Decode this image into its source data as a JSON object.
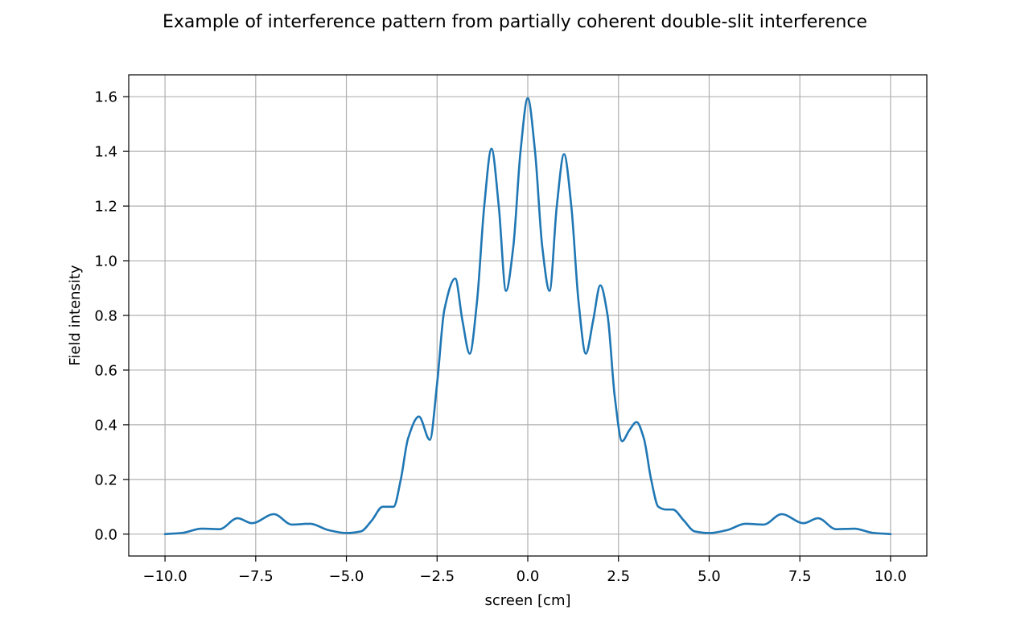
{
  "chart_data": {
    "type": "line",
    "title": "Example of interference pattern from partially coherent double-slit interference",
    "xlabel": "screen [cm]",
    "ylabel": "Field intensity",
    "xlim": [
      -11.0,
      11.0
    ],
    "ylim": [
      -0.08,
      1.68
    ],
    "grid": true,
    "xticks": [
      -10.0,
      -7.5,
      -5.0,
      -2.5,
      0.0,
      2.5,
      5.0,
      7.5,
      10.0
    ],
    "xtick_labels": [
      "−10.0",
      "−7.5",
      "−5.0",
      "−2.5",
      "0.0",
      "2.5",
      "5.0",
      "7.5",
      "10.0"
    ],
    "yticks": [
      0.0,
      0.2,
      0.4,
      0.6,
      0.8,
      1.0,
      1.2,
      1.4,
      1.6
    ],
    "ytick_labels": [
      "0.0",
      "0.2",
      "0.4",
      "0.6",
      "0.8",
      "1.0",
      "1.2",
      "1.4",
      "1.6"
    ],
    "series": [
      {
        "color": "#1f77b4",
        "x": [
          -10.0,
          -9.5,
          -9.0,
          -8.5,
          -8.0,
          -7.6,
          -7.0,
          -6.5,
          -6.0,
          -5.5,
          -5.0,
          -4.6,
          -4.3,
          -4.0,
          -3.7,
          -3.5,
          -3.3,
          -3.0,
          -2.7,
          -2.5,
          -2.3,
          -2.0,
          -1.8,
          -1.6,
          -1.4,
          -1.2,
          -1.0,
          -0.8,
          -0.6,
          -0.4,
          -0.2,
          0.0,
          0.2,
          0.4,
          0.6,
          0.8,
          1.0,
          1.2,
          1.4,
          1.6,
          1.8,
          2.0,
          2.2,
          2.4,
          2.6,
          2.8,
          3.0,
          3.2,
          3.4,
          3.6,
          3.8,
          4.0,
          4.3,
          4.6,
          5.0,
          5.5,
          6.0,
          6.5,
          7.0,
          7.6,
          8.0,
          8.5,
          9.0,
          9.5,
          10.0
        ],
        "y": [
          0.0,
          0.005,
          0.02,
          0.018,
          0.058,
          0.04,
          0.073,
          0.035,
          0.038,
          0.015,
          0.004,
          0.01,
          0.05,
          0.1,
          0.1,
          0.2,
          0.35,
          0.43,
          0.345,
          0.55,
          0.82,
          0.935,
          0.78,
          0.66,
          0.85,
          1.2,
          1.41,
          1.2,
          0.89,
          1.05,
          1.4,
          1.595,
          1.4,
          1.05,
          0.89,
          1.2,
          1.39,
          1.2,
          0.85,
          0.66,
          0.78,
          0.91,
          0.8,
          0.5,
          0.34,
          0.38,
          0.41,
          0.35,
          0.2,
          0.1,
          0.09,
          0.09,
          0.05,
          0.01,
          0.004,
          0.015,
          0.038,
          0.035,
          0.073,
          0.04,
          0.058,
          0.018,
          0.02,
          0.005,
          0.0
        ]
      }
    ]
  }
}
